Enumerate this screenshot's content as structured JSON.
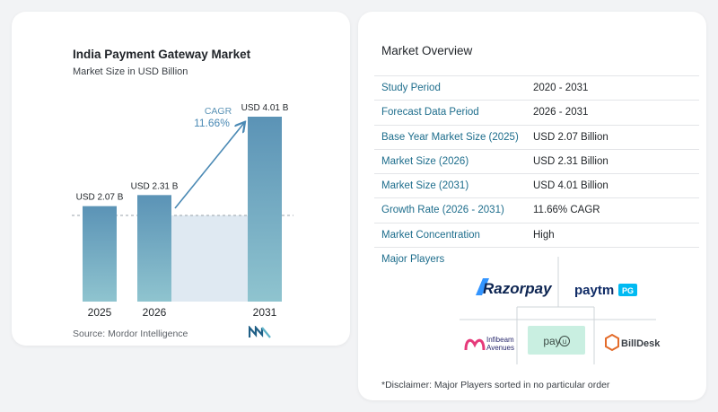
{
  "chart": {
    "title": "India Payment Gateway Market",
    "subtitle": "Market Size in USD Billion",
    "source": "Source: Mordor Intelligence",
    "cagr_label": "CAGR",
    "cagr_value": "11.66%"
  },
  "chart_data": {
    "type": "bar",
    "categories": [
      "2025",
      "2026",
      "2031"
    ],
    "values": [
      2.07,
      2.31,
      4.01
    ],
    "data_labels": [
      "USD 2.07 B",
      "USD 2.31 B",
      "USD 4.01 B"
    ],
    "title": "India Payment Gateway Market",
    "subtitle": "Market Size in USD Billion",
    "xlabel": "",
    "ylabel": "",
    "ylim": [
      0,
      4.01
    ],
    "grid": false,
    "colors": {
      "bar_top": "#5b93b6",
      "bar_bottom": "#8fc4cf",
      "accent": "#4a89b4",
      "band": "#dfe9f2"
    }
  },
  "overview": {
    "title": "Market Overview",
    "rows": [
      {
        "label": "Study Period",
        "value": "2020 - 2031"
      },
      {
        "label": "Forecast Data Period",
        "value": "2026 - 2031"
      },
      {
        "label": "Base Year Market Size (2025)",
        "value": "USD 2.07 Billion"
      },
      {
        "label": "Market Size (2026)",
        "value": "USD 2.31 Billion"
      },
      {
        "label": "Market Size (2031)",
        "value": "USD 4.01 Billion"
      },
      {
        "label": "Growth Rate (2026 - 2031)",
        "value": "11.66% CAGR"
      },
      {
        "label": "Market Concentration",
        "value": "High"
      }
    ]
  },
  "players": {
    "title": "Major Players",
    "logos": [
      "Razorpay",
      "Paytm PG",
      "Infibeam Avenues",
      "PayU",
      "BillDesk"
    ],
    "razorpay": "Razorpay",
    "paytm_main": "paytm",
    "paytm_badge": "PG",
    "infibeam_line1": "Infibeam",
    "infibeam_line2": "Avenues",
    "payu": "pay",
    "payu_badge": "u",
    "billdesk": "BillDesk",
    "disclaimer": "*Disclaimer: Major Players sorted in no particular order"
  }
}
